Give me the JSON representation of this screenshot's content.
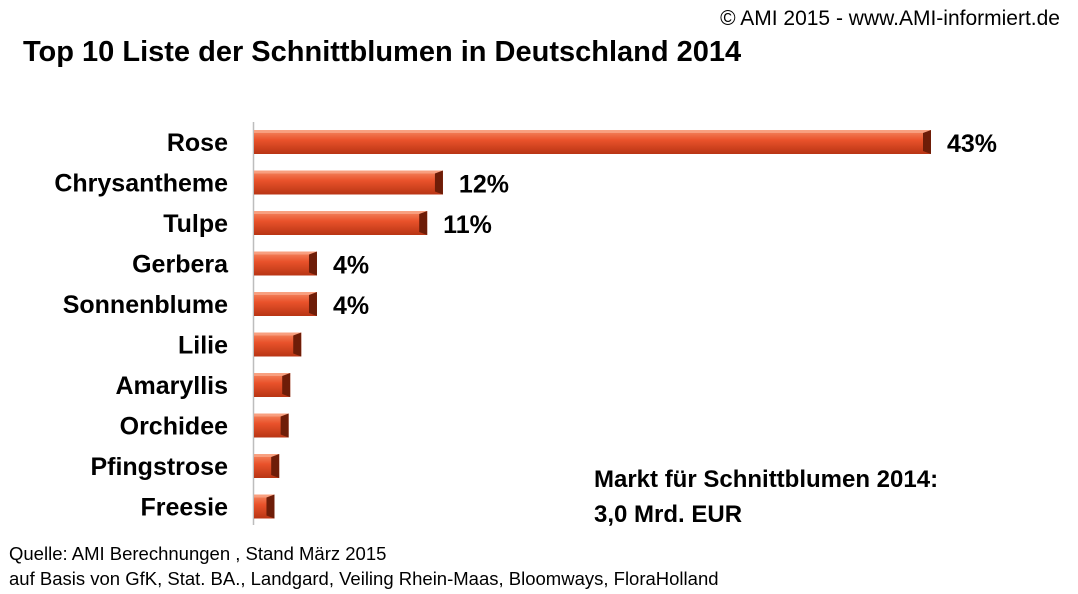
{
  "header": {
    "copyright": "© AMI 2015 - www.AMI-informiert.de"
  },
  "chart_data": {
    "type": "bar",
    "orientation": "horizontal",
    "title": "Top 10 Liste der Schnittblumen in Deutschland 2014",
    "categories": [
      "Rose",
      "Chrysantheme",
      "Tulpe",
      "Gerbera",
      "Sonnenblume",
      "Lilie",
      "Amaryllis",
      "Orchidee",
      "Pfingstrose",
      "Freesie"
    ],
    "values": [
      43,
      12,
      11,
      4,
      4,
      3,
      2.3,
      2.2,
      1.6,
      1.3
    ],
    "data_labels": [
      "43%",
      "12%",
      "11%",
      "4%",
      "4%",
      "",
      "",
      "",
      "",
      ""
    ],
    "unit": "%",
    "xlim": [
      0,
      43
    ],
    "xlabel": "",
    "ylabel": "",
    "grid": false,
    "bar_color": "#e9522b"
  },
  "annotation": {
    "line1": "Markt für Schnittblumen 2014:",
    "line2": "3,0 Mrd. EUR"
  },
  "source": {
    "line1": "Quelle: AMI Berechnungen , Stand März 2015",
    "line2": "auf  Basis  von GfK,  Stat. BA., Landgard, Veiling Rhein-Maas, Bloomways, FloraHolland"
  }
}
